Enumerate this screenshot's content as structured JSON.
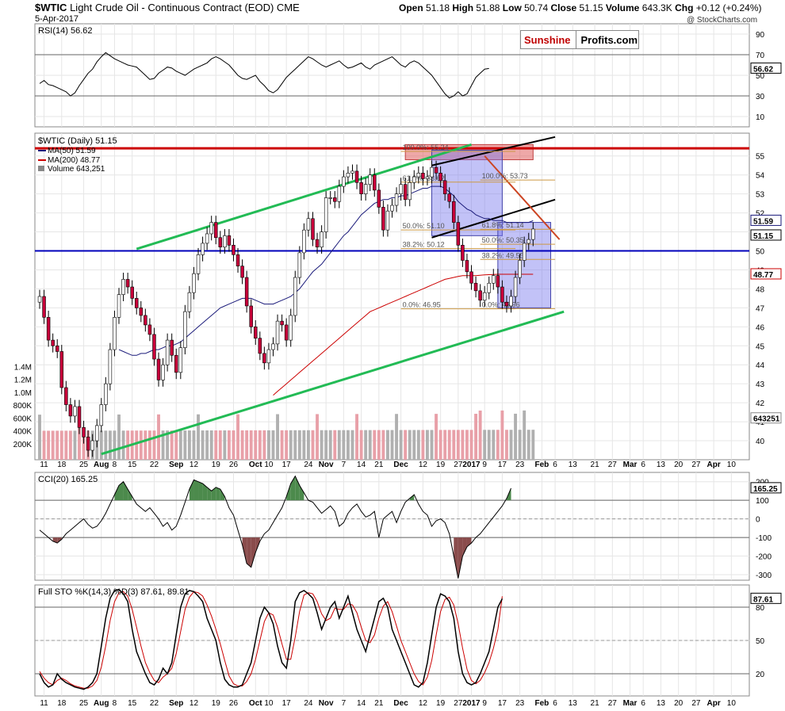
{
  "header": {
    "symbol": "$WTIC",
    "name": "Light Crude Oil - Continuous Contract (EOD)",
    "exchange": "CME",
    "date": "5-Apr-2017",
    "open_label": "Open",
    "open": "51.18",
    "high_label": "High",
    "high": "51.88",
    "low_label": "Low",
    "low": "50.74",
    "close_label": "Close",
    "close": "51.15",
    "volume_label": "Volume",
    "volume": "643.3K",
    "chg_label": "Chg",
    "chg": "+0.12 (+0.24%)",
    "watermark": "@ StockCharts.com"
  },
  "logo": {
    "part1": "Sunshine",
    "part2": "Profits.com"
  },
  "colors": {
    "candle_up": "#ffffff",
    "candle_down": "#c8003a",
    "candle_outline": "#000000",
    "ma50": "#1a1a7a",
    "ma200": "#cc0000",
    "channel": "#22bb55",
    "resistance": "#cc0000",
    "support": "#0000bb",
    "downtrend": "#cc4422",
    "box_fill": "#7777ee",
    "zone_fill": "#e06060",
    "cci_pos": "#4c8a4c",
    "cci_neg": "#8a4c4c",
    "sto_k": "#000000",
    "sto_d": "#cc0000",
    "vol_up": "#b0b0b0",
    "vol_down": "#e8a0a8"
  },
  "chart_data": [
    {
      "type": "line",
      "name": "rsi",
      "label": "RSI(14) 56.62",
      "last_value": "56.62",
      "ylim": [
        0,
        100
      ],
      "yticks": [
        90,
        70,
        50,
        30,
        10
      ],
      "levels": [
        70,
        30
      ],
      "values": [
        42,
        45,
        41,
        40,
        38,
        36,
        34,
        30,
        33,
        40,
        46,
        52,
        56,
        63,
        68,
        72,
        69,
        66,
        64,
        62,
        60,
        59,
        58,
        54,
        50,
        46,
        47,
        52,
        55,
        58,
        57,
        54,
        52,
        50,
        53,
        56,
        58,
        60,
        62,
        66,
        68,
        66,
        63,
        60,
        55,
        50,
        47,
        46,
        48,
        50,
        44,
        40,
        35,
        33,
        36,
        42,
        48,
        52,
        56,
        60,
        64,
        68,
        66,
        63,
        60,
        58,
        60,
        62,
        64,
        60,
        57,
        58,
        60,
        62,
        58,
        56,
        60,
        62,
        64,
        66,
        68,
        64,
        60,
        58,
        62,
        64,
        62,
        58,
        54,
        50,
        44,
        38,
        32,
        28,
        30,
        34,
        30,
        32,
        40,
        48,
        52,
        56,
        56.62
      ]
    },
    {
      "type": "candlestick",
      "name": "price",
      "legend_main": "$WTIC (Daily) 51.15",
      "legend_ma50": "MA(50) 51.59",
      "legend_ma200": "MA(200) 48.77",
      "legend_volume": "Volume 643,251",
      "last_close_label": "51.15",
      "ma50_last_label": "51.59",
      "ma200_last_label": "48.77",
      "ylim": [
        39,
        56.2
      ],
      "yticks": [
        55,
        54,
        53,
        52,
        51,
        50,
        49,
        48,
        47,
        46,
        45,
        44,
        43,
        42,
        41,
        40
      ],
      "close": [
        47.6,
        46.5,
        45.3,
        45.0,
        44.7,
        42.8,
        41.9,
        41.3,
        41.8,
        40.7,
        40.2,
        39.5,
        40.0,
        40.8,
        41.9,
        43.0,
        44.8,
        46.5,
        47.7,
        48.5,
        48.1,
        47.5,
        47.0,
        46.6,
        46.1,
        45.6,
        44.3,
        43.2,
        44.0,
        45.3,
        44.5,
        43.6,
        44.9,
        46.8,
        47.8,
        48.8,
        49.8,
        50.4,
        50.9,
        51.5,
        50.7,
        50.2,
        50.8,
        50.3,
        49.8,
        49.2,
        48.6,
        47.1,
        46.0,
        45.4,
        44.6,
        44.1,
        44.8,
        45.1,
        46.3,
        46.1,
        45.3,
        46.6,
        48.6,
        49.9,
        51.1,
        51.7,
        50.6,
        50.2,
        51.0,
        52.8,
        52.8,
        52.6,
        53.4,
        53.9,
        54.1,
        54.2,
        53.6,
        53.0,
        53.5,
        54.0,
        53.2,
        52.3,
        51.1,
        52.1,
        52.4,
        53.0,
        53.5,
        52.7,
        53.6,
        53.9,
        54.1,
        53.8,
        53.9,
        54.4,
        54.1,
        53.7,
        53.0,
        52.6,
        51.5,
        50.3,
        49.5,
        48.9,
        48.3,
        47.9,
        47.4,
        47.8,
        48.3,
        48.7,
        48.1,
        47.3,
        47.1,
        47.6,
        48.6,
        49.5,
        50.4,
        50.6,
        51.15
      ],
      "ma50": [
        null,
        null,
        null,
        null,
        null,
        null,
        null,
        null,
        null,
        null,
        null,
        null,
        null,
        null,
        null,
        null,
        null,
        null,
        44.8,
        44.7,
        44.6,
        44.5,
        44.5,
        44.6,
        44.6,
        44.7,
        44.8,
        44.8,
        44.9,
        45.0,
        45.0,
        45.1,
        45.2,
        45.4,
        45.6,
        45.8,
        46.0,
        46.2,
        46.4,
        46.6,
        46.8,
        47.0,
        47.1,
        47.2,
        47.3,
        47.4,
        47.5,
        47.5,
        47.5,
        47.4,
        47.3,
        47.2,
        47.2,
        47.2,
        47.3,
        47.4,
        47.5,
        47.6,
        47.8,
        48.0,
        48.3,
        48.6,
        48.9,
        49.1,
        49.3,
        49.6,
        49.9,
        50.2,
        50.5,
        50.8,
        51.0,
        51.3,
        51.6,
        51.9,
        52.1,
        52.3,
        52.5,
        52.6,
        52.7,
        52.7,
        52.8,
        52.8,
        52.9,
        52.9,
        53.0,
        53.1,
        53.2,
        53.3,
        53.3,
        53.4,
        53.4,
        53.4,
        53.3,
        53.1,
        52.9,
        52.6,
        52.4,
        52.2,
        52.1,
        51.9,
        51.8,
        51.7,
        51.7,
        51.6,
        51.6,
        51.6,
        51.5,
        51.5,
        51.5,
        51.5,
        51.5,
        51.5,
        51.59
      ],
      "ma200": [
        null,
        null,
        null,
        null,
        null,
        null,
        null,
        null,
        null,
        null,
        null,
        null,
        null,
        null,
        null,
        null,
        null,
        null,
        null,
        null,
        null,
        null,
        null,
        null,
        null,
        null,
        null,
        null,
        null,
        null,
        null,
        null,
        null,
        null,
        null,
        null,
        null,
        null,
        null,
        null,
        null,
        null,
        null,
        null,
        null,
        null,
        null,
        null,
        null,
        null,
        null,
        null,
        null,
        42.4,
        42.6,
        42.8,
        43.0,
        43.2,
        43.4,
        43.6,
        43.8,
        44.0,
        44.2,
        44.4,
        44.6,
        44.8,
        45.0,
        45.2,
        45.4,
        45.6,
        45.8,
        46.0,
        46.2,
        46.4,
        46.6,
        46.8,
        46.9,
        47.0,
        47.1,
        47.2,
        47.3,
        47.4,
        47.5,
        47.6,
        47.7,
        47.8,
        47.9,
        48.0,
        48.1,
        48.2,
        48.3,
        48.4,
        48.5,
        48.55,
        48.6,
        48.65,
        48.7,
        48.7,
        48.7,
        48.7,
        48.72,
        48.74,
        48.75,
        48.76,
        48.77,
        48.77,
        48.77,
        48.77,
        48.77,
        48.77,
        48.77,
        48.77,
        48.77
      ],
      "volume_scale_max": 1600000,
      "volume_ticks": [
        {
          "v": 1400000,
          "t": "1.4M"
        },
        {
          "v": 1200000,
          "t": "1.2M"
        },
        {
          "v": 1000000,
          "t": "1.0M"
        },
        {
          "v": 800000,
          "t": "800K"
        },
        {
          "v": 600000,
          "t": "600K"
        },
        {
          "v": 400000,
          "t": "400K"
        },
        {
          "v": 200000,
          "t": "200K"
        }
      ],
      "volume_last_label": "643251",
      "fib_left": [
        {
          "label": "100.0%: 55.24",
          "y": 55.24
        },
        {
          "label": "61.8%: 53.62",
          "y": 53.62
        },
        {
          "label": "50.0%: 51.10",
          "y": 51.1
        },
        {
          "label": "38.2%: 50.12",
          "y": 50.12
        },
        {
          "label": "0.0%: 46.95",
          "y": 46.95
        }
      ],
      "fib_right": [
        {
          "label": "100.0%: 53.73",
          "y": 53.73
        },
        {
          "label": "61.8%: 51.14",
          "y": 51.14
        },
        {
          "label": "50.0%: 50.35",
          "y": 50.35
        },
        {
          "label": "38.2%: 49.55",
          "y": 49.55
        },
        {
          "label": "0.0%: 46.96",
          "y": 46.96
        }
      ]
    },
    {
      "type": "area",
      "name": "cci",
      "label": "CCI(20) 165.25",
      "last_value": "165.25",
      "ylim": [
        -330,
        250
      ],
      "yticks": [
        {
          "v": 200,
          "t": "200"
        },
        {
          "v": 100,
          "t": "100"
        },
        {
          "v": 0,
          "t": "0"
        },
        {
          "v": -100,
          "t": "-100"
        },
        {
          "v": -200,
          "t": "-200"
        },
        {
          "v": -300,
          "t": "-300"
        }
      ],
      "levels": [
        100,
        -100
      ],
      "values": [
        -60,
        -80,
        -100,
        -120,
        -130,
        -110,
        -80,
        -60,
        -40,
        -20,
        0,
        -30,
        -50,
        -40,
        -10,
        30,
        80,
        130,
        180,
        200,
        160,
        120,
        80,
        60,
        40,
        60,
        30,
        0,
        -40,
        -20,
        -60,
        -40,
        20,
        90,
        160,
        210,
        200,
        190,
        170,
        150,
        170,
        160,
        120,
        60,
        20,
        -60,
        -140,
        -240,
        -260,
        -180,
        -120,
        -80,
        -60,
        -20,
        20,
        60,
        120,
        190,
        230,
        180,
        140,
        100,
        90,
        60,
        30,
        50,
        70,
        40,
        -40,
        -20,
        30,
        60,
        80,
        40,
        10,
        20,
        40,
        -100,
        0,
        20,
        40,
        -20,
        40,
        90,
        110,
        130,
        80,
        40,
        20,
        -40,
        -10,
        0,
        -20,
        -80,
        -200,
        -320,
        -200,
        -150,
        -130,
        -100,
        -80,
        -50,
        -20,
        10,
        40,
        70,
        110,
        165.25
      ]
    },
    {
      "type": "line",
      "name": "stochastic",
      "label": "Full STO %K(14,3) %D(3) 87.61, 89.81",
      "last_value": "87.61",
      "ylim": [
        0,
        100
      ],
      "yticks": [
        {
          "v": 80,
          "t": "80"
        },
        {
          "v": 50,
          "t": "50"
        },
        {
          "v": 20,
          "t": "20"
        }
      ],
      "levels": [
        80,
        50,
        20
      ],
      "k": [
        20,
        12,
        8,
        10,
        20,
        15,
        12,
        10,
        8,
        7,
        6,
        8,
        12,
        20,
        45,
        70,
        88,
        95,
        96,
        92,
        85,
        60,
        40,
        30,
        20,
        12,
        10,
        15,
        25,
        20,
        30,
        55,
        80,
        92,
        95,
        94,
        90,
        85,
        70,
        60,
        50,
        30,
        15,
        10,
        8,
        8,
        10,
        20,
        30,
        50,
        70,
        80,
        75,
        65,
        45,
        30,
        25,
        50,
        85,
        93,
        95,
        92,
        88,
        75,
        60,
        70,
        80,
        85,
        70,
        80,
        90,
        75,
        60,
        50,
        40,
        55,
        70,
        85,
        88,
        80,
        60,
        50,
        40,
        30,
        20,
        10,
        8,
        12,
        30,
        55,
        80,
        92,
        90,
        85,
        70,
        40,
        20,
        12,
        10,
        12,
        20,
        30,
        40,
        60,
        80,
        87.61
      ],
      "d": [
        22,
        16,
        12,
        10,
        14,
        16,
        14,
        11,
        9,
        8,
        7,
        7,
        9,
        14,
        26,
        45,
        68,
        85,
        93,
        94,
        90,
        78,
        62,
        45,
        30,
        21,
        14,
        12,
        17,
        20,
        25,
        38,
        58,
        78,
        89,
        94,
        93,
        90,
        82,
        72,
        60,
        47,
        32,
        18,
        11,
        9,
        9,
        13,
        20,
        33,
        50,
        67,
        75,
        73,
        62,
        47,
        33,
        33,
        53,
        76,
        91,
        93,
        92,
        85,
        74,
        68,
        70,
        79,
        78,
        78,
        83,
        82,
        75,
        62,
        50,
        48,
        55,
        70,
        81,
        85,
        76,
        63,
        50,
        40,
        30,
        20,
        13,
        10,
        17,
        32,
        55,
        76,
        87,
        89,
        82,
        65,
        43,
        24,
        14,
        11,
        14,
        21,
        30,
        43,
        60,
        89.81
      ]
    }
  ],
  "x_axis": {
    "labels": [
      {
        "t": "11",
        "i": 1
      },
      {
        "t": "18",
        "i": 5
      },
      {
        "t": "25",
        "i": 10
      },
      {
        "t": "Aug",
        "i": 14,
        "bold": true
      },
      {
        "t": "8",
        "i": 17
      },
      {
        "t": "15",
        "i": 21
      },
      {
        "t": "22",
        "i": 26
      },
      {
        "t": "Sep",
        "i": 31,
        "bold": true
      },
      {
        "t": "12",
        "i": 35
      },
      {
        "t": "19",
        "i": 40
      },
      {
        "t": "26",
        "i": 44
      },
      {
        "t": "Oct",
        "i": 49,
        "bold": true
      },
      {
        "t": "10",
        "i": 52
      },
      {
        "t": "17",
        "i": 56
      },
      {
        "t": "24",
        "i": 61
      },
      {
        "t": "Nov",
        "i": 65,
        "bold": true
      },
      {
        "t": "7",
        "i": 69
      },
      {
        "t": "14",
        "i": 73
      },
      {
        "t": "21",
        "i": 77
      },
      {
        "t": "Dec",
        "i": 82,
        "bold": true
      },
      {
        "t": "12",
        "i": 87
      },
      {
        "t": "19",
        "i": 91
      },
      {
        "t": "27",
        "i": 95
      },
      {
        "t": "2017",
        "i": 98,
        "bold": true
      },
      {
        "t": "9",
        "i": 101
      },
      {
        "t": "17",
        "i": 105
      },
      {
        "t": "23",
        "i": 109
      },
      {
        "t": "Feb",
        "i": 114,
        "bold": true
      },
      {
        "t": "6",
        "i": 117
      },
      {
        "t": "13",
        "i": 121
      },
      {
        "t": "21",
        "i": 126
      },
      {
        "t": "27",
        "i": 130
      },
      {
        "t": "Mar",
        "i": 134,
        "bold": true
      },
      {
        "t": "6",
        "i": 137
      },
      {
        "t": "13",
        "i": 141
      },
      {
        "t": "20",
        "i": 145
      },
      {
        "t": "27",
        "i": 149
      },
      {
        "t": "Apr",
        "i": 153,
        "bold": true
      },
      {
        "t": "10",
        "i": 157
      }
    ]
  }
}
